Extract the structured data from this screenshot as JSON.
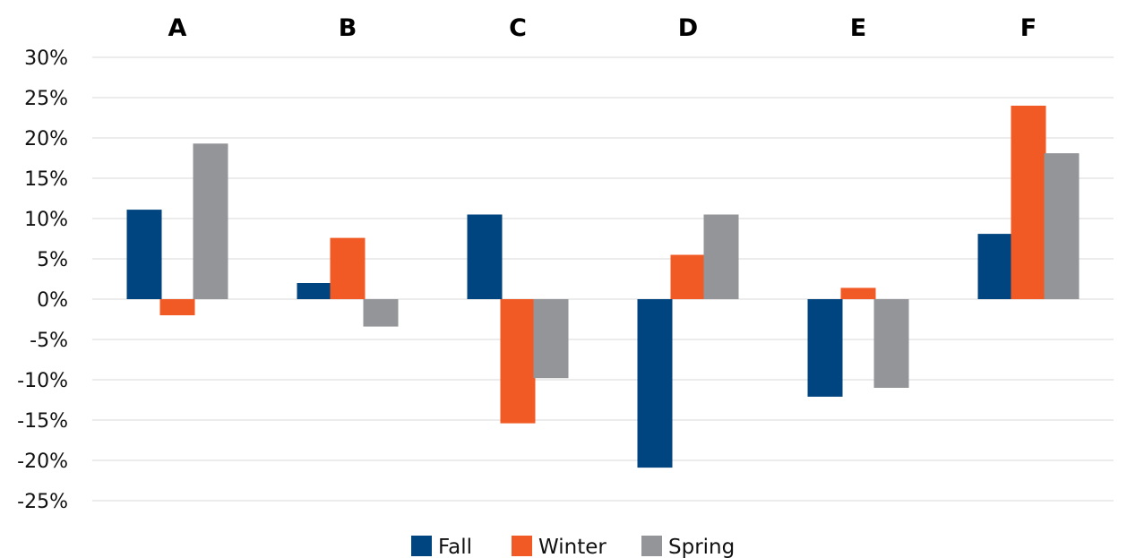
{
  "chart_data": {
    "type": "bar",
    "categories": [
      "A",
      "B",
      "C",
      "D",
      "E",
      "F"
    ],
    "series": [
      {
        "name": "Fall",
        "color": "#004480",
        "values": [
          11.1,
          2.0,
          10.5,
          -20.9,
          -12.1,
          8.1
        ]
      },
      {
        "name": "Winter",
        "color": "#F15A24",
        "values": [
          -2.0,
          7.6,
          -15.4,
          5.5,
          1.4,
          24.0
        ]
      },
      {
        "name": "Spring",
        "color": "#939598",
        "values": [
          19.3,
          -3.4,
          -9.8,
          10.5,
          -11.0,
          18.1
        ]
      }
    ],
    "title": "",
    "xlabel": "",
    "ylabel": "",
    "ylim": [
      -25,
      30
    ],
    "yticks": [
      30,
      25,
      20,
      15,
      10,
      5,
      0,
      -5,
      -10,
      -15,
      -20,
      -25
    ],
    "ytick_labels": [
      "30%",
      "25%",
      "20%",
      "15%",
      "10%",
      "5%",
      "0%",
      "-5%",
      "-10%",
      "-15%",
      "-20%",
      "-25%"
    ],
    "category_axis_position": "top",
    "grid": true,
    "legend_position": "bottom-center"
  }
}
